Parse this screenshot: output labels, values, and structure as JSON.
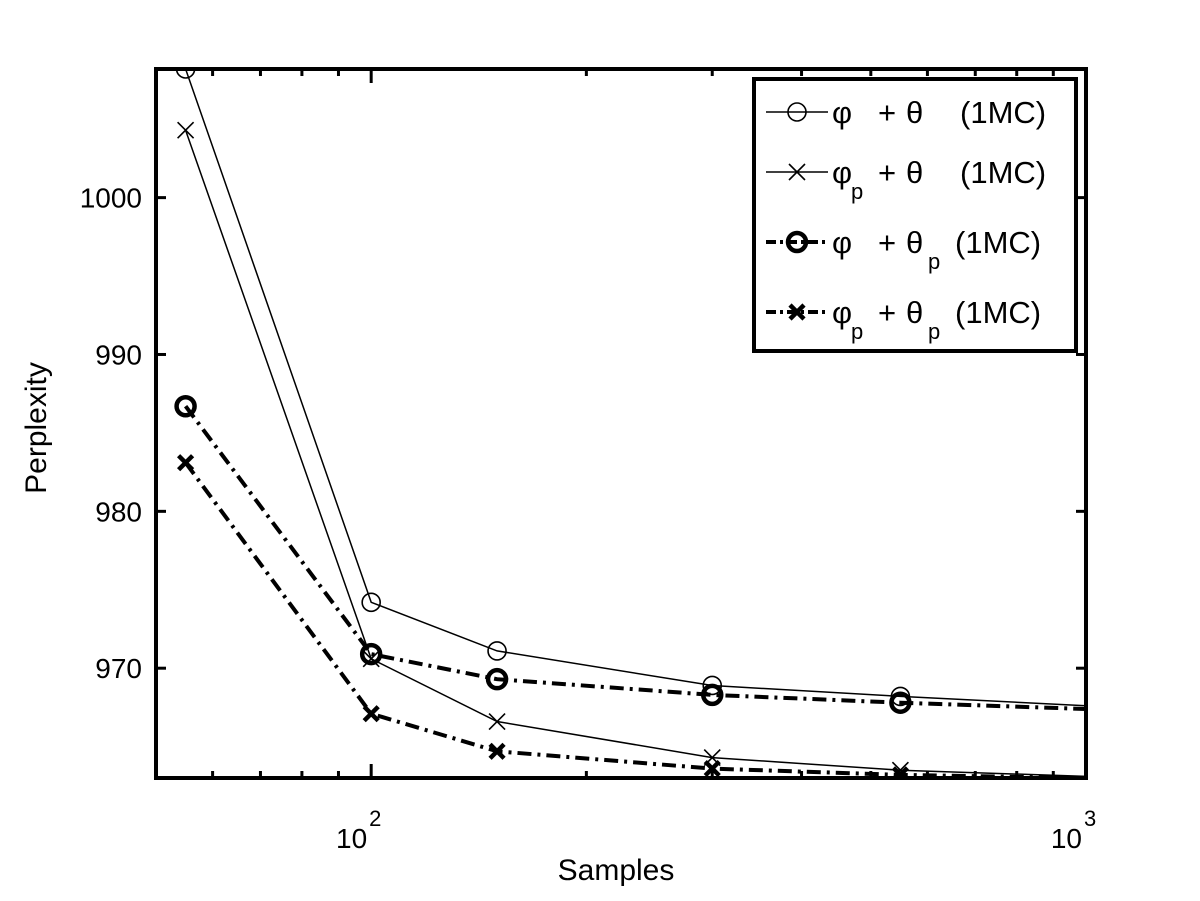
{
  "chart_data": {
    "type": "line",
    "title": "",
    "xlabel": "Samples",
    "ylabel": "Perplexity",
    "xscale": "log",
    "xlim": [
      50,
      1000
    ],
    "ylim": [
      963,
      1008.2
    ],
    "grid": false,
    "legend_position": "top-right",
    "x_ticks": [
      {
        "value": 100,
        "base": "10",
        "exp": "2"
      },
      {
        "value": 1000,
        "base": "10",
        "exp": "3"
      }
    ],
    "y_ticks": [
      970,
      980,
      990,
      1000
    ],
    "series": [
      {
        "name": "φ + θ (1MC)",
        "legend": {
          "sym1": "φ",
          "sub1": "",
          "sym2": "θ",
          "sub2": "",
          "tail": "(1MC)"
        },
        "marker": "circle",
        "line": "solid",
        "weight": "thin",
        "x": [
          55,
          100,
          150,
          300,
          550,
          1000
        ],
        "y": [
          1008.2,
          974.2,
          971.1,
          968.9,
          968.2,
          967.6
        ]
      },
      {
        "name": "φp + θ (1MC)",
        "legend": {
          "sym1": "φ",
          "sub1": "p",
          "sym2": "θ",
          "sub2": "",
          "tail": "(1MC)"
        },
        "marker": "x",
        "line": "solid",
        "weight": "thin",
        "x": [
          55,
          100,
          150,
          300,
          550,
          1000
        ],
        "y": [
          1004.3,
          970.6,
          966.6,
          964.3,
          963.5,
          963.1
        ]
      },
      {
        "name": "φ + θp (1MC)",
        "legend": {
          "sym1": "φ",
          "sub1": "",
          "sym2": "θ",
          "sub2": "p",
          "tail": "(1MC)"
        },
        "marker": "circle",
        "line": "dashdot",
        "weight": "bold",
        "x": [
          55,
          100,
          150,
          300,
          550,
          1000
        ],
        "y": [
          986.7,
          970.9,
          969.3,
          968.3,
          967.8,
          967.4
        ]
      },
      {
        "name": "φp + θp (1MC)",
        "legend": {
          "sym1": "φ",
          "sub1": "p",
          "sym2": "θ",
          "sub2": "p",
          "tail": "(1MC)"
        },
        "marker": "x",
        "line": "dashdot",
        "weight": "bold",
        "x": [
          55,
          100,
          150,
          300,
          550,
          1000
        ],
        "y": [
          983.1,
          967.1,
          964.7,
          963.6,
          963.2,
          963.0
        ]
      }
    ]
  }
}
